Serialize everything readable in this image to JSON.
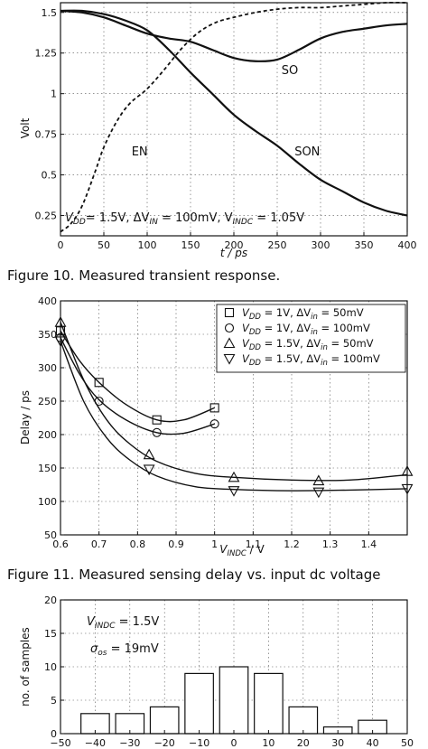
{
  "chart_data": [
    {
      "id": "transient",
      "type": "line",
      "xlabel": "t / ps",
      "ylabel": "Volt",
      "xlim": [
        0,
        400
      ],
      "ylim": [
        0.125,
        1.56
      ],
      "xticks": [
        "0",
        "50",
        "100",
        "150",
        "200",
        "250",
        "300",
        "350",
        "400"
      ],
      "yticks": [
        "0.25",
        "0.5",
        "0.75",
        "1",
        "1.25",
        "1.5"
      ],
      "grid": true,
      "annotation_parts": [
        "V",
        "DD",
        "= 1.5V, ΔV",
        "IN",
        " = 100mV, V",
        "INDC",
        " = 1.05V"
      ],
      "series": [
        {
          "name": "SO",
          "style": "solid",
          "x": [
            0,
            25,
            50,
            75,
            100,
            125,
            150,
            175,
            200,
            225,
            250,
            275,
            300,
            325,
            350,
            375,
            400
          ],
          "y": [
            1.51,
            1.5,
            1.47,
            1.42,
            1.37,
            1.34,
            1.32,
            1.27,
            1.22,
            1.2,
            1.21,
            1.27,
            1.34,
            1.38,
            1.4,
            1.42,
            1.43
          ]
        },
        {
          "name": "SON",
          "style": "solid",
          "x": [
            0,
            25,
            50,
            75,
            100,
            125,
            150,
            175,
            200,
            225,
            250,
            275,
            300,
            325,
            350,
            375,
            400
          ],
          "y": [
            1.51,
            1.51,
            1.49,
            1.45,
            1.39,
            1.27,
            1.13,
            1.0,
            0.87,
            0.77,
            0.68,
            0.57,
            0.47,
            0.4,
            0.33,
            0.28,
            0.25
          ]
        },
        {
          "name": "EN",
          "style": "dashed",
          "x": [
            0,
            12,
            25,
            40,
            50,
            65,
            80,
            100,
            120,
            140,
            160,
            180,
            200,
            225,
            250,
            275,
            300,
            325,
            350,
            375,
            400
          ],
          "y": [
            0.15,
            0.2,
            0.31,
            0.52,
            0.67,
            0.83,
            0.94,
            1.03,
            1.15,
            1.28,
            1.38,
            1.44,
            1.47,
            1.5,
            1.52,
            1.53,
            1.53,
            1.54,
            1.55,
            1.56,
            1.56
          ]
        }
      ],
      "labels": [
        {
          "text": "SO",
          "x": 255,
          "y": 1.12
        },
        {
          "text": "EN",
          "x": 82,
          "y": 0.62
        },
        {
          "text": "SON",
          "x": 270,
          "y": 0.62
        }
      ]
    },
    {
      "id": "delay",
      "type": "scatter",
      "xlabel_parts": [
        "V",
        "INDC",
        " / V"
      ],
      "ylabel": "Delay / ps",
      "xlim": [
        0.6,
        1.5
      ],
      "ylim": [
        50,
        400
      ],
      "xticks": [
        "0.6",
        "0.7",
        "0.8",
        "0.9",
        "1",
        "1.1",
        "1.2",
        "1.3",
        "1.4"
      ],
      "yticks": [
        "50",
        "100",
        "150",
        "200",
        "250",
        "300",
        "350",
        "400"
      ],
      "grid": true,
      "legend_position": "top-right",
      "series": [
        {
          "name_parts": [
            "V",
            "DD",
            " = 1V, ΔV",
            "in",
            " = 50mV"
          ],
          "marker": "square",
          "x": [
            0.6,
            0.7,
            0.85,
            1.0
          ],
          "y": [
            355,
            278,
            222,
            240
          ],
          "fit": [
            [
              0.6,
              355
            ],
            [
              0.65,
              310
            ],
            [
              0.7,
              278
            ],
            [
              0.77,
              245
            ],
            [
              0.85,
              222
            ],
            [
              0.92,
              222
            ],
            [
              1.0,
              240
            ]
          ]
        },
        {
          "name_parts": [
            "V",
            "DD",
            " = 1V, ΔV",
            "in",
            " = 100mV"
          ],
          "marker": "circle",
          "x": [
            0.6,
            0.7,
            0.85,
            1.0
          ],
          "y": [
            345,
            250,
            203,
            216
          ],
          "fit": [
            [
              0.6,
              345
            ],
            [
              0.65,
              290
            ],
            [
              0.7,
              252
            ],
            [
              0.77,
              222
            ],
            [
              0.85,
              203
            ],
            [
              0.92,
              202
            ],
            [
              1.0,
              216
            ]
          ]
        },
        {
          "name_parts": [
            "V",
            "DD",
            " = 1.5V, ΔV",
            "in",
            " = 50mV"
          ],
          "marker": "triangle-up",
          "x": [
            0.6,
            0.83,
            1.05,
            1.27,
            1.5
          ],
          "y": [
            368,
            170,
            136,
            131,
            145
          ],
          "fit": [
            [
              0.6,
              368
            ],
            [
              0.66,
              282
            ],
            [
              0.72,
              222
            ],
            [
              0.78,
              186
            ],
            [
              0.85,
              160
            ],
            [
              0.95,
              142
            ],
            [
              1.05,
              136
            ],
            [
              1.2,
              132
            ],
            [
              1.35,
              132
            ],
            [
              1.5,
              140
            ]
          ]
        },
        {
          "name_parts": [
            "V",
            "DD",
            " = 1.5V, ΔV",
            "in",
            " = 100mV"
          ],
          "marker": "triangle-down",
          "x": [
            0.6,
            0.83,
            1.05,
            1.27,
            1.5
          ],
          "y": [
            340,
            148,
            116,
            114,
            119
          ],
          "fit": [
            [
              0.6,
              340
            ],
            [
              0.66,
              250
            ],
            [
              0.72,
              195
            ],
            [
              0.78,
              162
            ],
            [
              0.85,
              138
            ],
            [
              0.95,
              122
            ],
            [
              1.05,
              118
            ],
            [
              1.2,
              116
            ],
            [
              1.35,
              117
            ],
            [
              1.5,
              119
            ]
          ]
        }
      ]
    },
    {
      "id": "histogram",
      "type": "bar",
      "ylabel": "no. of samples",
      "xlim": [
        -50,
        50
      ],
      "ylim": [
        0,
        20
      ],
      "xticks": [
        "−50",
        "−40",
        "−30",
        "−20",
        "−10",
        "0",
        "10",
        "20",
        "30",
        "40",
        "50"
      ],
      "yticks": [
        "0",
        "5",
        "10",
        "15",
        "20"
      ],
      "grid": true,
      "categories": [
        -40,
        -30,
        -20,
        -10,
        0,
        10,
        20,
        30,
        40
      ],
      "values": [
        3,
        3,
        4,
        9,
        10,
        9,
        4,
        1,
        2
      ],
      "annotation1_parts": [
        "V",
        "INDC",
        " = 1.5V"
      ],
      "annotation2_parts": [
        "σ",
        "os",
        " = 19mV"
      ]
    }
  ],
  "captions": {
    "fig10": "Figure 10. Measured transient response.",
    "fig11": "Figure 11. Measured sensing delay vs. input dc voltage"
  }
}
